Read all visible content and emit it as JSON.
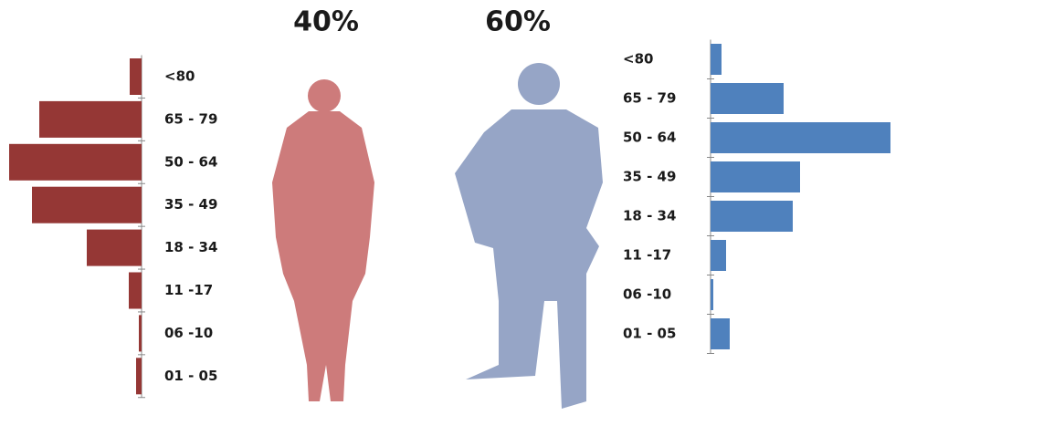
{
  "chart_data": [
    {
      "type": "bar",
      "title": "40%",
      "direction": "left",
      "color": "#953735",
      "categories": [
        "<80",
        "65 - 79",
        "50 - 64",
        "35 - 49",
        "18 - 34",
        "11 -17",
        "06 -10",
        "01 - 05"
      ],
      "values": [
        13,
        112,
        145,
        120,
        60,
        14,
        3,
        6
      ]
    },
    {
      "type": "bar",
      "title": "60%",
      "direction": "right",
      "color": "#4f81bd",
      "categories": [
        "<80",
        "65 - 79",
        "50 - 64",
        "35 - 49",
        "18 - 34",
        "11 -17",
        "06 -10",
        "01 - 05"
      ],
      "values": [
        12,
        80,
        197,
        98,
        90,
        17,
        3,
        21
      ]
    }
  ]
}
